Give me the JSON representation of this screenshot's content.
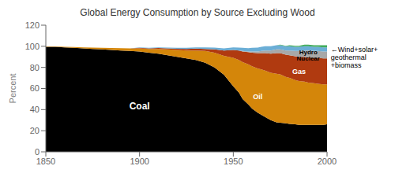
{
  "chart_data": {
    "type": "area",
    "stacked": true,
    "title": "Global Energy Consumption by Source Excluding Wood",
    "ylabel": "Percent",
    "xlim": [
      1850,
      2000
    ],
    "ylim": [
      0,
      120
    ],
    "xticks": [
      1850,
      1900,
      1950,
      2000
    ],
    "yticks": [
      0,
      20,
      40,
      60,
      80,
      100,
      120
    ],
    "grid": false,
    "x": [
      1850,
      1855,
      1860,
      1865,
      1870,
      1875,
      1880,
      1885,
      1890,
      1895,
      1900,
      1905,
      1910,
      1915,
      1920,
      1925,
      1930,
      1935,
      1940,
      1945,
      1950,
      1953,
      1955,
      1958,
      1960,
      1963,
      1965,
      1967,
      1970,
      1973,
      1975,
      1978,
      1980,
      1983,
      1985,
      1988,
      1990,
      1993,
      1995,
      1998,
      2000
    ],
    "series": [
      {
        "name": "Coal",
        "color": "#000000",
        "label_x": 1900,
        "label_y": 43,
        "values": [
          99.5,
          99.5,
          99.0,
          98.5,
          98.0,
          97.5,
          97.0,
          96.5,
          96.0,
          95.5,
          95.0,
          94.0,
          93.0,
          91.5,
          90.0,
          88.5,
          87.0,
          84.5,
          80.0,
          73.0,
          62.0,
          56.0,
          50.0,
          45.0,
          41.0,
          37.0,
          35.0,
          33.0,
          30.0,
          28.0,
          27.5,
          27.0,
          26.5,
          26.0,
          25.5,
          25.5,
          25.5,
          25.5,
          25.5,
          25.5,
          26.0
        ]
      },
      {
        "name": "Oil",
        "color": "#D4860A",
        "label_x": 1963,
        "label_y": 52,
        "values": [
          0.3,
          0.3,
          0.5,
          0.8,
          1.0,
          1.2,
          1.5,
          1.8,
          2.2,
          2.5,
          3.0,
          3.5,
          4.5,
          5.5,
          6.5,
          7.5,
          9.0,
          11.0,
          14.0,
          18.0,
          27.0,
          31.0,
          35.0,
          38.0,
          40.0,
          42.0,
          43.0,
          44.0,
          45.0,
          46.0,
          46.0,
          44.0,
          43.5,
          42.0,
          41.5,
          41.0,
          40.0,
          39.5,
          39.0,
          38.5,
          38.0
        ]
      },
      {
        "name": "Gas",
        "color": "#B03A10",
        "label_x": 1985,
        "label_y": 76,
        "values": [
          0,
          0,
          0,
          0,
          0,
          0,
          0,
          0,
          0,
          0,
          0.5,
          0.5,
          0.8,
          1.0,
          1.2,
          1.5,
          1.8,
          2.0,
          3.0,
          5.0,
          7.5,
          9.0,
          10.0,
          11.5,
          13.0,
          14.5,
          15.5,
          16.5,
          18.0,
          19.5,
          20.0,
          21.0,
          21.5,
          22.5,
          23.0,
          23.5,
          24.0,
          24.0,
          24.5,
          24.5,
          24.5
        ]
      },
      {
        "name": "Nuclear",
        "color": "#A8A8A8",
        "label_x": 1990,
        "label_y": 89,
        "values": [
          0,
          0,
          0,
          0,
          0,
          0,
          0,
          0,
          0,
          0,
          0,
          0,
          0,
          0,
          0,
          0,
          0,
          0,
          0,
          0,
          0,
          0,
          0.5,
          0.5,
          1.0,
          1.5,
          2.0,
          2.5,
          3.0,
          3.5,
          3.5,
          4.0,
          4.5,
          5.0,
          5.5,
          6.0,
          6.5,
          6.5,
          6.5,
          6.5,
          6.5
        ]
      },
      {
        "name": "Hydro",
        "color": "#6BAED6",
        "label_x": 1990,
        "label_y": 95,
        "values": [
          0,
          0,
          0,
          0,
          0,
          0,
          0,
          0,
          0,
          0,
          0.5,
          0.5,
          0.7,
          0.8,
          0.9,
          1.0,
          1.2,
          1.5,
          1.8,
          2.0,
          2.5,
          2.8,
          3.0,
          3.2,
          3.5,
          3.8,
          4.0,
          4.0,
          4.0,
          4.0,
          4.0,
          4.0,
          4.0,
          4.0,
          4.0,
          4.0,
          4.0,
          4.0,
          4.0,
          4.0,
          4.0
        ]
      },
      {
        "name": "←Wind+solar+\ngeothermal\n+biomass",
        "color": "#41AB5D",
        "label_x": 2002,
        "label_y": 99,
        "values": [
          0,
          0,
          0,
          0,
          0,
          0,
          0,
          0,
          0,
          0,
          0,
          0,
          0,
          0,
          0,
          0,
          0,
          0,
          0,
          0,
          0,
          0,
          0,
          0,
          0,
          0,
          0,
          0,
          0,
          0,
          0.5,
          0.5,
          1.0,
          1.0,
          1.0,
          1.5,
          1.5,
          1.5,
          1.5,
          2.0,
          2.0
        ]
      }
    ]
  }
}
